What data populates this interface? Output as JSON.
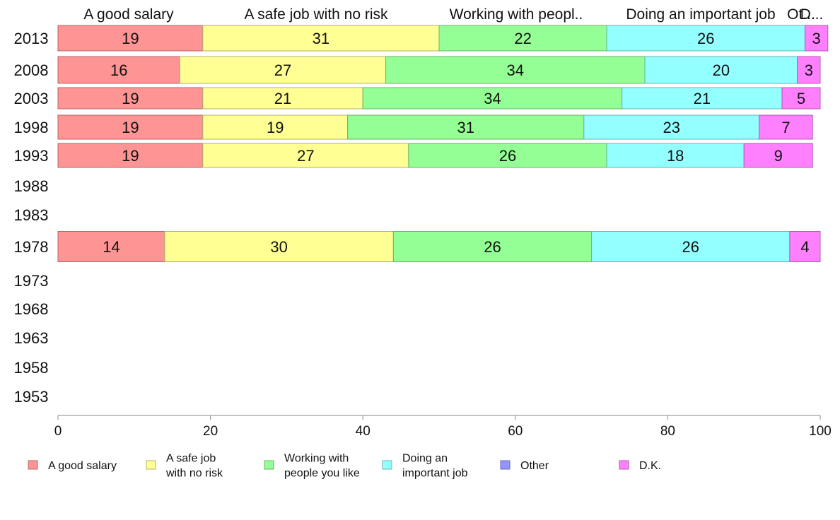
{
  "chart_data": {
    "type": "bar",
    "orientation": "horizontal",
    "stacked": true,
    "title": "",
    "xlabel": "",
    "ylabel": "",
    "xlim": [
      0,
      100
    ],
    "x_ticks": [
      0,
      20,
      40,
      60,
      80,
      100
    ],
    "grid": false,
    "legend_position": "bottom",
    "column_headers": [
      "A good salary",
      "A safe job with no risk",
      "Working with peopl..",
      "Doing an important job",
      "Ot...",
      "D..."
    ],
    "categories": [
      "2013",
      "2008",
      "2003",
      "1998",
      "1993",
      "1988",
      "1983",
      "1978",
      "1973",
      "1968",
      "1963",
      "1958",
      "1953"
    ],
    "series": [
      {
        "name": "A good salary",
        "legend_lines": [
          "A good salary"
        ],
        "color": "#ff9494",
        "edge": "#b06868",
        "values": [
          19,
          16,
          19,
          19,
          19,
          null,
          null,
          14,
          null,
          null,
          null,
          null,
          null
        ]
      },
      {
        "name": "A safe job with no risk",
        "legend_lines": [
          "A safe job",
          "with no risk"
        ],
        "color": "#ffff94",
        "edge": "#b3b368",
        "values": [
          31,
          27,
          21,
          19,
          27,
          null,
          null,
          30,
          null,
          null,
          null,
          null,
          null
        ]
      },
      {
        "name": "Working with people you like",
        "legend_lines": [
          "Working with",
          "people you like"
        ],
        "color": "#94ff94",
        "edge": "#68b368",
        "values": [
          22,
          34,
          34,
          31,
          26,
          null,
          null,
          26,
          null,
          null,
          null,
          null,
          null
        ]
      },
      {
        "name": "Doing an important job",
        "legend_lines": [
          "Doing an",
          "important job"
        ],
        "color": "#94ffff",
        "edge": "#68b3b3",
        "values": [
          26,
          20,
          21,
          23,
          18,
          null,
          null,
          26,
          null,
          null,
          null,
          null,
          null
        ]
      },
      {
        "name": "Other",
        "legend_lines": [
          "Other"
        ],
        "color": "#9494ff",
        "edge": "#6868b3",
        "values": [
          0,
          0,
          0,
          0,
          0,
          null,
          null,
          0,
          null,
          null,
          null,
          null,
          null
        ]
      },
      {
        "name": "D.K.",
        "legend_lines": [
          "D.K."
        ],
        "color": "#ff80ff",
        "edge": "#b35ab3",
        "values": [
          3,
          3,
          5,
          7,
          9,
          null,
          null,
          4,
          null,
          null,
          null,
          null,
          null
        ]
      }
    ]
  }
}
